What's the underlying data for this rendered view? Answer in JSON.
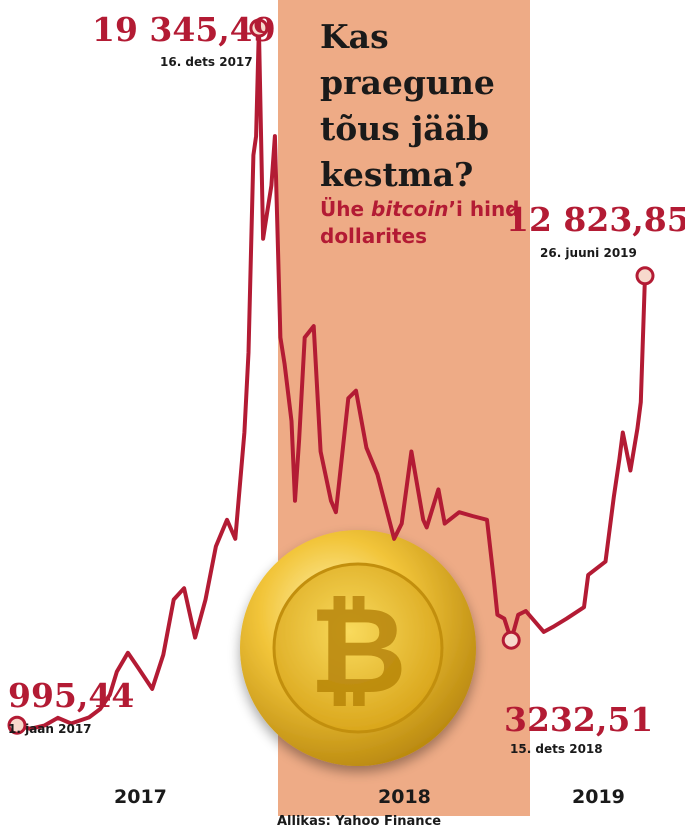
{
  "headline": "Kas praegune tõus jääb kestma?",
  "subtitle_prefix": "Ühe ",
  "subtitle_italic": "bitcoin",
  "subtitle_suffix": "’i hind dollarites",
  "source": "Allikas: Yahoo Finance",
  "colors": {
    "line": "#b31b34",
    "band": "#eeab86",
    "coin": "#e8b41d"
  },
  "icons": {
    "coin": "bitcoin-coin-icon"
  },
  "chart_data": {
    "type": "line",
    "x_range": [
      "2017-01-01",
      "2019-06-26"
    ],
    "y_range": [
      0,
      20000
    ],
    "highlight_year": "2018",
    "years": [
      "2017",
      "2018",
      "2019"
    ],
    "annotations": [
      {
        "date": "2017-01-01",
        "value": 995.44,
        "value_label": "995,44",
        "date_label": "1. jaan 2017"
      },
      {
        "date": "2017-12-16",
        "value": 19345.49,
        "value_label": "19 345,49",
        "date_label": "16. dets 2017"
      },
      {
        "date": "2018-12-15",
        "value": 3232.51,
        "value_label": "3232,51",
        "date_label": "15. dets 2018"
      },
      {
        "date": "2019-06-26",
        "value": 12823.85,
        "value_label": "12 823,85",
        "date_label": "26. juuni 2019"
      }
    ],
    "series": [
      {
        "points": [
          [
            "2017-01-01",
            995
          ],
          [
            "2017-01-20",
            900
          ],
          [
            "2017-02-10",
            990
          ],
          [
            "2017-03-01",
            1190
          ],
          [
            "2017-03-20",
            1040
          ],
          [
            "2017-04-15",
            1200
          ],
          [
            "2017-05-01",
            1420
          ],
          [
            "2017-05-15",
            1800
          ],
          [
            "2017-05-25",
            2400
          ],
          [
            "2017-06-10",
            2900
          ],
          [
            "2017-06-25",
            2500
          ],
          [
            "2017-07-15",
            1950
          ],
          [
            "2017-07-31",
            2850
          ],
          [
            "2017-08-15",
            4300
          ],
          [
            "2017-08-30",
            4600
          ],
          [
            "2017-09-15",
            3300
          ],
          [
            "2017-09-30",
            4300
          ],
          [
            "2017-10-15",
            5700
          ],
          [
            "2017-10-31",
            6400
          ],
          [
            "2017-11-12",
            5900
          ],
          [
            "2017-11-25",
            8700
          ],
          [
            "2017-12-01",
            10800
          ],
          [
            "2017-12-08",
            16000
          ],
          [
            "2017-12-12",
            16500
          ],
          [
            "2017-12-16",
            19345
          ],
          [
            "2017-12-22",
            13800
          ],
          [
            "2017-12-28",
            14500
          ],
          [
            "2018-01-03",
            15200
          ],
          [
            "2018-01-08",
            16500
          ],
          [
            "2018-01-16",
            11200
          ],
          [
            "2018-01-22",
            10500
          ],
          [
            "2018-02-01",
            9000
          ],
          [
            "2018-02-06",
            6900
          ],
          [
            "2018-02-12",
            8500
          ],
          [
            "2018-02-20",
            11200
          ],
          [
            "2018-03-05",
            11500
          ],
          [
            "2018-03-15",
            8200
          ],
          [
            "2018-03-30",
            6900
          ],
          [
            "2018-04-06",
            6600
          ],
          [
            "2018-04-24",
            9600
          ],
          [
            "2018-05-05",
            9800
          ],
          [
            "2018-05-20",
            8300
          ],
          [
            "2018-06-05",
            7600
          ],
          [
            "2018-06-29",
            5900
          ],
          [
            "2018-07-10",
            6300
          ],
          [
            "2018-07-24",
            8200
          ],
          [
            "2018-08-10",
            6400
          ],
          [
            "2018-08-15",
            6200
          ],
          [
            "2018-09-01",
            7200
          ],
          [
            "2018-09-10",
            6300
          ],
          [
            "2018-10-01",
            6600
          ],
          [
            "2018-10-20",
            6500
          ],
          [
            "2018-11-10",
            6400
          ],
          [
            "2018-11-20",
            4800
          ],
          [
            "2018-11-25",
            3900
          ],
          [
            "2018-12-05",
            3800
          ],
          [
            "2018-12-15",
            3232
          ],
          [
            "2018-12-25",
            3900
          ],
          [
            "2019-01-05",
            4000
          ],
          [
            "2019-01-31",
            3450
          ],
          [
            "2019-02-15",
            3600
          ],
          [
            "2019-03-05",
            3800
          ],
          [
            "2019-03-30",
            4100
          ],
          [
            "2019-04-05",
            4950
          ],
          [
            "2019-04-30",
            5300
          ],
          [
            "2019-05-12",
            7000
          ],
          [
            "2019-05-20",
            8000
          ],
          [
            "2019-05-25",
            8700
          ],
          [
            "2019-06-05",
            7700
          ],
          [
            "2019-06-15",
            8800
          ],
          [
            "2019-06-20",
            9500
          ],
          [
            "2019-06-26",
            12824
          ]
        ]
      }
    ]
  }
}
